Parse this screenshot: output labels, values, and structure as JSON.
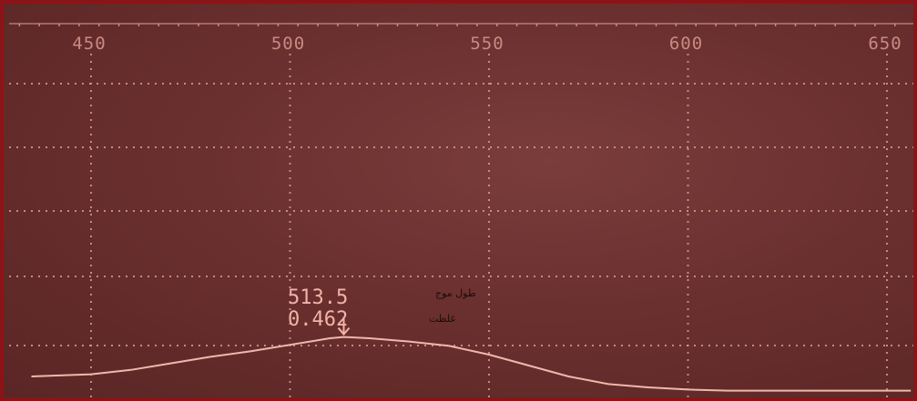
{
  "chart_data": {
    "type": "line",
    "x": [
      435,
      450,
      460,
      470,
      480,
      490,
      500,
      505,
      510,
      513.5,
      520,
      530,
      540,
      550,
      560,
      570,
      580,
      590,
      600,
      610,
      620,
      630,
      640,
      650,
      656
    ],
    "series": [
      {
        "values": [
          0.1,
          0.12,
          0.16,
          0.22,
          0.28,
          0.33,
          0.39,
          0.42,
          0.45,
          0.462,
          0.45,
          0.42,
          0.38,
          0.3,
          0.2,
          0.1,
          0.03,
          0.0,
          -0.02,
          -0.03,
          -0.03,
          -0.03,
          -0.03,
          -0.03,
          -0.03
        ]
      }
    ],
    "xlim": [
      432,
      656
    ],
    "x_ticks": [
      "450",
      "500",
      "550",
      "600",
      "650"
    ],
    "grid": true,
    "marker": {
      "x": 513.5,
      "wavelength_text": "513.5",
      "wavelength_label": "طول موج",
      "absorbance_text": "0.462",
      "absorbance_label": "غلظت"
    }
  },
  "colors": {
    "background": "#6a302f",
    "border": "#8b1418",
    "grid": "#d99a90",
    "trace": "#f0b8ac",
    "tick_label": "#c98a82",
    "readout": "#f1b3a8"
  }
}
